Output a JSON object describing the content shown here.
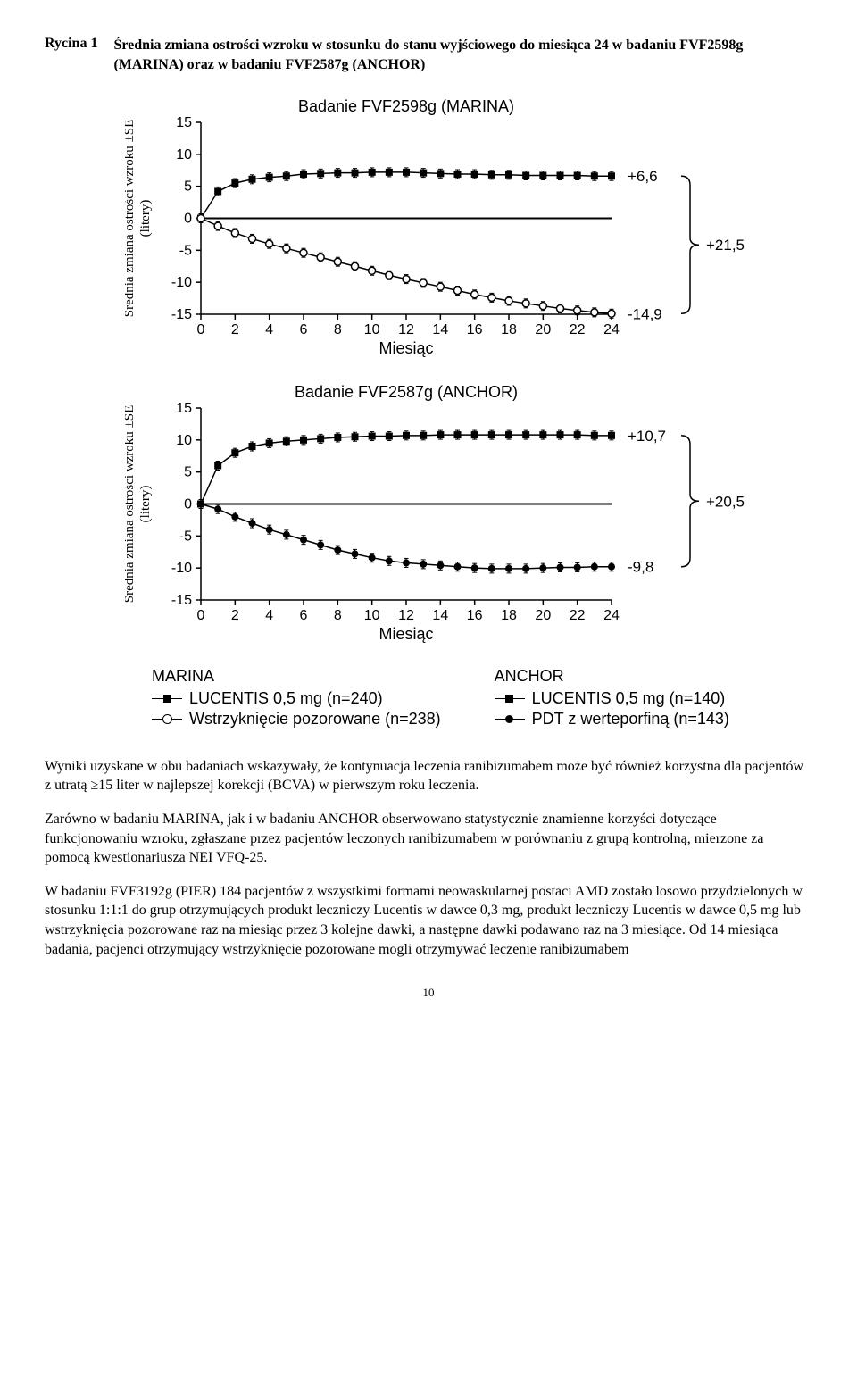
{
  "figure": {
    "label": "Rycina 1",
    "title": "Średnia zmiana ostrości wzroku w stosunku do stanu wyjściowego do miesiąca 24 w badaniu FVF2598g (MARINA) oraz w badaniu FVF2587g (ANCHOR)"
  },
  "chart_marina": {
    "title": "Badanie FVF2598g (MARINA)",
    "ylabel": "Średnia zmiana ostrości wzroku ±SE\n(litery)",
    "xlabel": "Miesiąc",
    "ylim": [
      -15,
      15
    ],
    "ytick_step": 5,
    "xlim": [
      0,
      24
    ],
    "xtick_step": 2,
    "series": {
      "treatment": {
        "marker": "square-filled",
        "color": "#000000",
        "end_label": "+6,6",
        "values": [
          0,
          4.2,
          5.5,
          6.1,
          6.4,
          6.6,
          6.9,
          7.0,
          7.1,
          7.1,
          7.2,
          7.2,
          7.2,
          7.1,
          7.0,
          6.9,
          6.9,
          6.8,
          6.8,
          6.7,
          6.7,
          6.7,
          6.7,
          6.6,
          6.6
        ]
      },
      "control": {
        "marker": "circle-open",
        "color": "#000000",
        "end_label": "-14,9",
        "values": [
          0,
          -1.2,
          -2.3,
          -3.2,
          -4.0,
          -4.7,
          -5.4,
          -6.1,
          -6.8,
          -7.5,
          -8.2,
          -8.9,
          -9.5,
          -10.1,
          -10.7,
          -11.3,
          -11.9,
          -12.4,
          -12.9,
          -13.3,
          -13.7,
          -14.1,
          -14.4,
          -14.7,
          -14.9
        ]
      }
    },
    "diff_label": "+21,5",
    "grid_color": "#000000",
    "background_color": "#ffffff",
    "title_fontsize": 18,
    "label_fontsize": 18,
    "tick_fontsize": 16
  },
  "chart_anchor": {
    "title": "Badanie FVF2587g (ANCHOR)",
    "ylabel": "Średnia zmiana ostrości wzroku ±SE\n(litery)",
    "xlabel": "Miesiąc",
    "ylim": [
      -15,
      15
    ],
    "ytick_step": 5,
    "xlim": [
      0,
      24
    ],
    "xtick_step": 2,
    "series": {
      "treatment": {
        "marker": "square-filled",
        "color": "#000000",
        "end_label": "+10,7",
        "values": [
          0,
          6.0,
          8.0,
          9.0,
          9.5,
          9.8,
          10.0,
          10.2,
          10.4,
          10.5,
          10.6,
          10.6,
          10.7,
          10.7,
          10.8,
          10.8,
          10.8,
          10.8,
          10.8,
          10.8,
          10.8,
          10.8,
          10.8,
          10.7,
          10.7
        ]
      },
      "control": {
        "marker": "circle-filled",
        "color": "#000000",
        "end_label": "-9,8",
        "values": [
          0,
          -0.8,
          -2.0,
          -3.0,
          -4.0,
          -4.8,
          -5.6,
          -6.4,
          -7.2,
          -7.8,
          -8.4,
          -8.9,
          -9.2,
          -9.4,
          -9.6,
          -9.8,
          -10.0,
          -10.1,
          -10.1,
          -10.1,
          -10.0,
          -9.9,
          -9.9,
          -9.8,
          -9.8
        ]
      }
    },
    "diff_label": "+20,5",
    "grid_color": "#000000",
    "background_color": "#ffffff",
    "title_fontsize": 18,
    "label_fontsize": 18,
    "tick_fontsize": 16
  },
  "legend": {
    "marina": {
      "title": "MARINA",
      "item1": "LUCENTIS 0,5 mg (n=240)",
      "item2": "Wstrzyknięcie pozorowane (n=238)"
    },
    "anchor": {
      "title": "ANCHOR",
      "item1": "LUCENTIS 0,5 mg (n=140)",
      "item2": "PDT z werteporfiną (n=143)"
    }
  },
  "paragraphs": {
    "p1": "Wyniki uzyskane w obu badaniach wskazywały, że kontynuacja leczenia ranibizumabem może być również korzystna dla pacjentów z utratą ≥15 liter w najlepszej korekcji (BCVA) w pierwszym roku leczenia.",
    "p2": "Zarówno w badaniu MARINA, jak i w badaniu ANCHOR obserwowano statystycznie znamienne korzyści dotyczące funkcjonowaniu wzroku, zgłaszane przez pacjentów leczonych ranibizumabem w porównaniu z grupą kontrolną, mierzone za pomocą kwestionariusza NEI VFQ-25.",
    "p3": "W badaniu FVF3192g (PIER) 184 pacjentów z wszystkimi formami neowaskularnej postaci AMD zostało losowo przydzielonych w stosunku 1:1:1 do grup otrzymujących produkt leczniczy Lucentis w dawce 0,3 mg, produkt leczniczy Lucentis w dawce 0,5 mg lub wstrzyknięcia pozorowane raz na miesiąc przez 3 kolejne dawki, a następne dawki podawano raz na 3 miesiące. Od 14 miesiąca badania, pacjenci otrzymujący wstrzyknięcie pozorowane mogli otrzymywać leczenie ranibizumabem"
  },
  "page_number": "10"
}
